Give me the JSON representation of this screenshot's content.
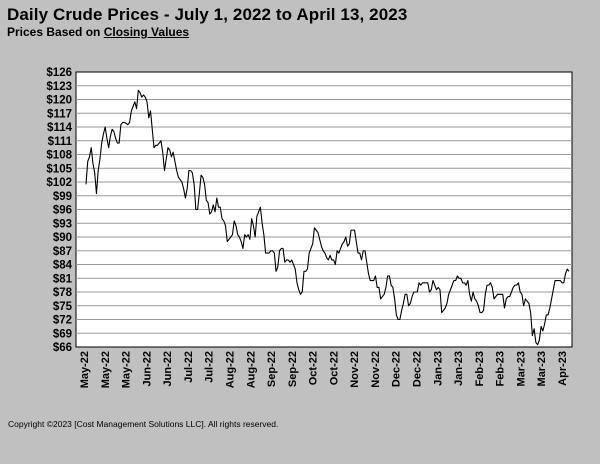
{
  "header": {
    "title": "Daily Crude Prices - July 1, 2022 to April 13, 2023",
    "subtitle_prefix": "Prices Based on",
    "subtitle_link": "Closing Values"
  },
  "footer": {
    "copyright": "Copyright ©2023 [Cost Management Solutions LLC]. All rights reserved."
  },
  "chart_data": {
    "type": "line",
    "title": "Daily Crude Prices - July 1, 2022 to April 13, 2023",
    "subtitle": "Prices Based on Closing Values",
    "xlabel": "",
    "ylabel": "",
    "ylim": [
      66,
      126
    ],
    "y_ticks": [
      "$66",
      "$69",
      "$72",
      "$75",
      "$78",
      "$81",
      "$84",
      "$87",
      "$90",
      "$93",
      "$96",
      "$99",
      "$102",
      "$105",
      "$108",
      "$111",
      "$114",
      "$117",
      "$120",
      "$123",
      "$126"
    ],
    "x_ticks": [
      "May-22",
      "May-22",
      "May-22",
      "Jun-22",
      "Jun-22",
      "Jul-22",
      "Jul-22",
      "Aug-22",
      "Aug-22",
      "Sep-22",
      "Sep-22",
      "Oct-22",
      "Oct-22",
      "Nov-22",
      "Nov-22",
      "Dec-22",
      "Dec-22",
      "Jan-23",
      "Jan-23",
      "Feb-23",
      "Feb-23",
      "Mar-23",
      "Mar-23",
      "Apr-23"
    ],
    "grid": true,
    "legend": "none",
    "line_color": "#000000",
    "series": [
      {
        "values": [
          101.5,
          106.5,
          107.5,
          109.5,
          106.0,
          104.0,
          99.5,
          104.5,
          107.0,
          110.5,
          112.5,
          114.0,
          111.5,
          109.5,
          112.0,
          113.5,
          113.0,
          111.5,
          110.5,
          110.5,
          114.5,
          115.0,
          115.0,
          114.8,
          114.5,
          115.0,
          117.5,
          118.5,
          119.5,
          118.0,
          122.0,
          121.5,
          120.5,
          121.0,
          120.5,
          119.5,
          116.0,
          117.5,
          113.5,
          109.5,
          110.0,
          110.0,
          110.5,
          111.0,
          108.5,
          104.5,
          107.0,
          109.5,
          109.0,
          107.5,
          108.5,
          106.5,
          104.5,
          103.0,
          102.5,
          102.0,
          100.5,
          98.5,
          100.5,
          104.5,
          104.5,
          104.0,
          101.5,
          96.0,
          96.0,
          99.5,
          103.5,
          103.0,
          101.5,
          98.0,
          97.5,
          95.0,
          95.5,
          97.0,
          95.5,
          98.5,
          96.5,
          96.5,
          94.0,
          93.5,
          92.5,
          89.0,
          89.5,
          90.0,
          90.5,
          93.5,
          92.5,
          90.5,
          90.0,
          89.0,
          87.5,
          90.5,
          90.0,
          90.5,
          89.5,
          94.0,
          92.5,
          90.0,
          94.5,
          95.5,
          96.5,
          93.0,
          90.5,
          86.5,
          86.5,
          86.5,
          87.0,
          87.0,
          86.5,
          82.5,
          83.5,
          87.0,
          87.5,
          87.5,
          84.5,
          85.0,
          85.0,
          84.5,
          85.0,
          84.0,
          83.0,
          80.0,
          78.5,
          77.5,
          78.0,
          82.5,
          82.5,
          83.0,
          86.5,
          87.5,
          88.5,
          92.0,
          91.5,
          91.0,
          89.5,
          88.0,
          87.0,
          86.5,
          85.5,
          85.0,
          86.0,
          85.0,
          85.0,
          84.0,
          87.0,
          86.5,
          87.5,
          88.5,
          89.0,
          90.0,
          88.0,
          88.5,
          91.5,
          91.5,
          91.5,
          89.0,
          86.5,
          86.5,
          85.0,
          87.0,
          87.0,
          84.5,
          82.0,
          80.5,
          80.5,
          80.5,
          81.5,
          79.0,
          79.0,
          76.5,
          77.0,
          77.5,
          79.0,
          81.5,
          81.5,
          79.5,
          79.0,
          76.5,
          73.0,
          72.0,
          72.0,
          74.0,
          75.5,
          77.5,
          77.5,
          75.0,
          75.5,
          77.0,
          78.0,
          78.0,
          78.0,
          80.0,
          79.5,
          80.0,
          80.0,
          80.0,
          80.0,
          78.0,
          78.5,
          80.5,
          79.5,
          78.5,
          79.0,
          78.5,
          73.5,
          74.0,
          74.5,
          75.5,
          77.5,
          78.5,
          79.5,
          80.5,
          80.5,
          81.5,
          81.0,
          81.0,
          80.0,
          80.0,
          79.5,
          80.5,
          77.5,
          76.0,
          78.0,
          76.5,
          76.0,
          75.0,
          73.5,
          73.5,
          74.0,
          77.5,
          79.5,
          79.5,
          80.0,
          79.0,
          76.5,
          77.0,
          77.5,
          77.5,
          77.5,
          77.5,
          74.5,
          76.5,
          77.0,
          77.0,
          78.0,
          79.0,
          79.5,
          79.5,
          80.0,
          78.0,
          77.5,
          75.0,
          76.5,
          76.0,
          75.5,
          73.5,
          68.5,
          70.0,
          67.0,
          66.5,
          67.5,
          70.5,
          69.5,
          71.0,
          73.0,
          73.0,
          74.5,
          76.5,
          78.5,
          80.5,
          80.5,
          80.5,
          80.5,
          80.0,
          80.0,
          82.0,
          83.0,
          82.5
        ]
      }
    ]
  }
}
